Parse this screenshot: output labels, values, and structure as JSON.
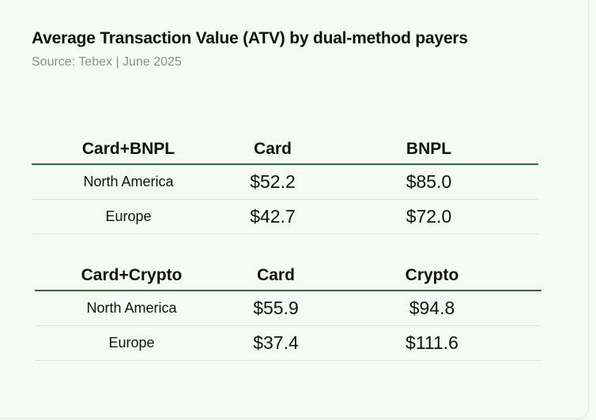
{
  "title": "Average Transaction Value (ATV)  by dual-method payers",
  "subtitle": "Source: Tebex | June 2025",
  "chart_data": [
    {
      "type": "table",
      "columns": [
        "Card+BNPL",
        "Card",
        "BNPL"
      ],
      "rows": [
        {
          "region": "North America",
          "values": [
            "$52.2",
            "$85.0"
          ]
        },
        {
          "region": "Europe",
          "values": [
            "$42.7",
            "$72.0"
          ]
        }
      ]
    },
    {
      "type": "table",
      "columns": [
        "Card+Crypto",
        "Card",
        "Crypto"
      ],
      "rows": [
        {
          "region": "North America",
          "values": [
            "$55.9",
            "$94.8"
          ]
        },
        {
          "region": "Europe",
          "values": [
            "$37.4",
            "$111.6"
          ]
        }
      ]
    }
  ],
  "colors": {
    "background": "#f4fbf3",
    "header_rule": "#2f6b38",
    "row_rule": "#dde3dc",
    "subtitle": "#8a8f89"
  }
}
